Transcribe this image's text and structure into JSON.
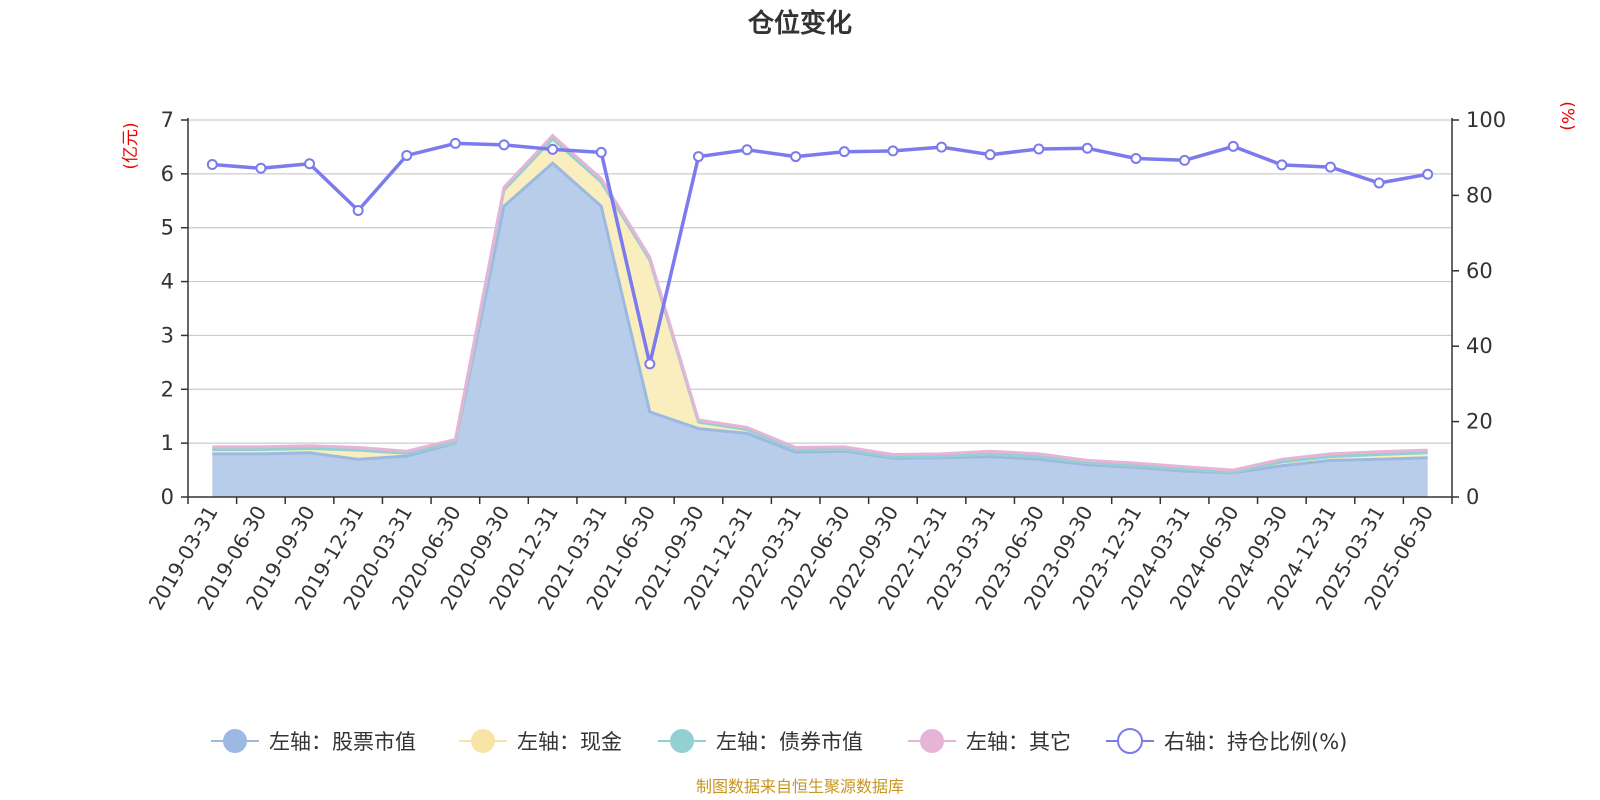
{
  "chart_data": {
    "type": "area",
    "title": "仓位变化",
    "left_axis": {
      "unit_label": "(亿元)",
      "ylim": [
        0,
        7
      ],
      "ticks": [
        "0",
        "1",
        "2",
        "3",
        "4",
        "5",
        "6",
        "7"
      ]
    },
    "right_axis": {
      "unit_label": "(%)",
      "ylim": [
        0,
        100
      ],
      "ticks": [
        "0",
        "20",
        "40",
        "60",
        "80",
        "100"
      ]
    },
    "categories": [
      "2019-03-31",
      "2019-06-30",
      "2019-09-30",
      "2019-12-31",
      "2020-03-31",
      "2020-06-30",
      "2020-09-30",
      "2020-12-31",
      "2021-03-31",
      "2021-06-30",
      "2021-09-30",
      "2021-12-31",
      "2022-03-31",
      "2022-06-30",
      "2022-09-30",
      "2022-12-31",
      "2023-03-31",
      "2023-06-30",
      "2023-09-30",
      "2023-12-31",
      "2024-03-31",
      "2024-06-30",
      "2024-09-30",
      "2024-12-31",
      "2025-03-31",
      "2025-06-30"
    ],
    "series": [
      {
        "name": "左轴：股票市值",
        "axis": "left",
        "stacked": true,
        "color": "#9bb9e1",
        "fill": "#b8cdea",
        "values": [
          0.8,
          0.8,
          0.82,
          0.7,
          0.76,
          1.0,
          5.4,
          6.2,
          5.4,
          1.58,
          1.27,
          1.18,
          0.83,
          0.85,
          0.72,
          0.73,
          0.75,
          0.7,
          0.6,
          0.55,
          0.48,
          0.45,
          0.58,
          0.68,
          0.7,
          0.73
        ]
      },
      {
        "name": "左轴：现金",
        "axis": "left",
        "stacked": true,
        "color": "#f8e5a6",
        "fill": "#faeebf",
        "values": [
          0.08,
          0.08,
          0.08,
          0.17,
          0.05,
          0.02,
          0.3,
          0.45,
          0.45,
          2.82,
          0.12,
          0.07,
          0.05,
          0.04,
          0.03,
          0.03,
          0.05,
          0.05,
          0.04,
          0.04,
          0.04,
          0.02,
          0.07,
          0.07,
          0.09,
          0.09
        ]
      },
      {
        "name": "左轴：债券市值",
        "axis": "left",
        "stacked": true,
        "color": "#92d0d4",
        "fill": "#a9dadd",
        "values": [
          0,
          0,
          0,
          0,
          0,
          0,
          0,
          0,
          0,
          0,
          0,
          0,
          0,
          0,
          0,
          0,
          0,
          0,
          0,
          0,
          0,
          0,
          0,
          0,
          0,
          0
        ]
      },
      {
        "name": "左轴：其它",
        "axis": "left",
        "stacked": true,
        "color": "#e6b4d6",
        "fill": "#ecc5df",
        "values": [
          0.05,
          0.05,
          0.05,
          0.05,
          0.04,
          0.05,
          0.05,
          0.06,
          0.06,
          0.05,
          0.04,
          0.04,
          0.04,
          0.04,
          0.04,
          0.04,
          0.05,
          0.05,
          0.04,
          0.04,
          0.04,
          0.03,
          0.05,
          0.05,
          0.05,
          0.05
        ]
      },
      {
        "name": "右轴：持仓比例(%)",
        "axis": "right",
        "type": "line",
        "color": "#7b7bee",
        "values": [
          88.2,
          87.2,
          88.4,
          76.0,
          90.6,
          93.8,
          93.4,
          92.2,
          91.4,
          35.3,
          90.3,
          92.1,
          90.3,
          91.6,
          91.8,
          92.8,
          90.8,
          92.3,
          92.5,
          89.8,
          89.3,
          93.0,
          88.1,
          87.5,
          83.3,
          85.6
        ]
      }
    ],
    "legend_position": "bottom",
    "grid": true
  },
  "source_note": "制图数据来自恒生聚源数据库"
}
